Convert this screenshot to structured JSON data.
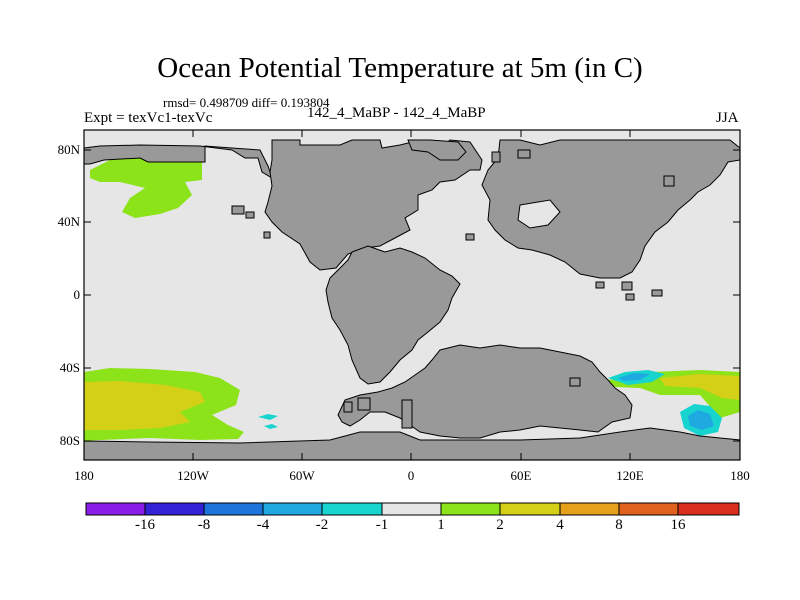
{
  "title": "Ocean Potential Temperature at 5m (in C)",
  "stats": "rmsd= 0.498709 diff= 0.193804",
  "experiment": "Expt = texVc1-texVc",
  "subtitle": "142_4_MaBP - 142_4_MaBP",
  "season": "JJA",
  "colors": {
    "ocean_neutral": "#e6e6e6",
    "land": "#999999",
    "coast": "#000000"
  },
  "map": {
    "lat_labels": [
      "80N",
      "40N",
      "0",
      "40S",
      "80S"
    ],
    "lon_labels": [
      "180",
      "120W",
      "60W",
      "0",
      "60E",
      "120E",
      "180"
    ]
  },
  "colorbar": {
    "colors": [
      "#8a1fe8",
      "#3322d6",
      "#1f74dc",
      "#1eaae0",
      "#18d4cf",
      "#e6e6e6",
      "#8de31a",
      "#d4d018",
      "#e6a11c",
      "#e0621e",
      "#d92f1c"
    ],
    "labels": [
      "-16",
      "-8",
      "-4",
      "-2",
      "-1",
      "1",
      "2",
      "4",
      "8",
      "16"
    ]
  },
  "anomaly_regions": [
    {
      "name": "North Pacific warm patch",
      "class": "1 to 2"
    },
    {
      "name": "South Pacific warm patch",
      "class": "2 to 4"
    },
    {
      "name": "South Indian Ocean cool patch",
      "class": "-2 to -1"
    },
    {
      "name": "Southwest Pacific cool patch",
      "class": "-4 to -2"
    }
  ]
}
